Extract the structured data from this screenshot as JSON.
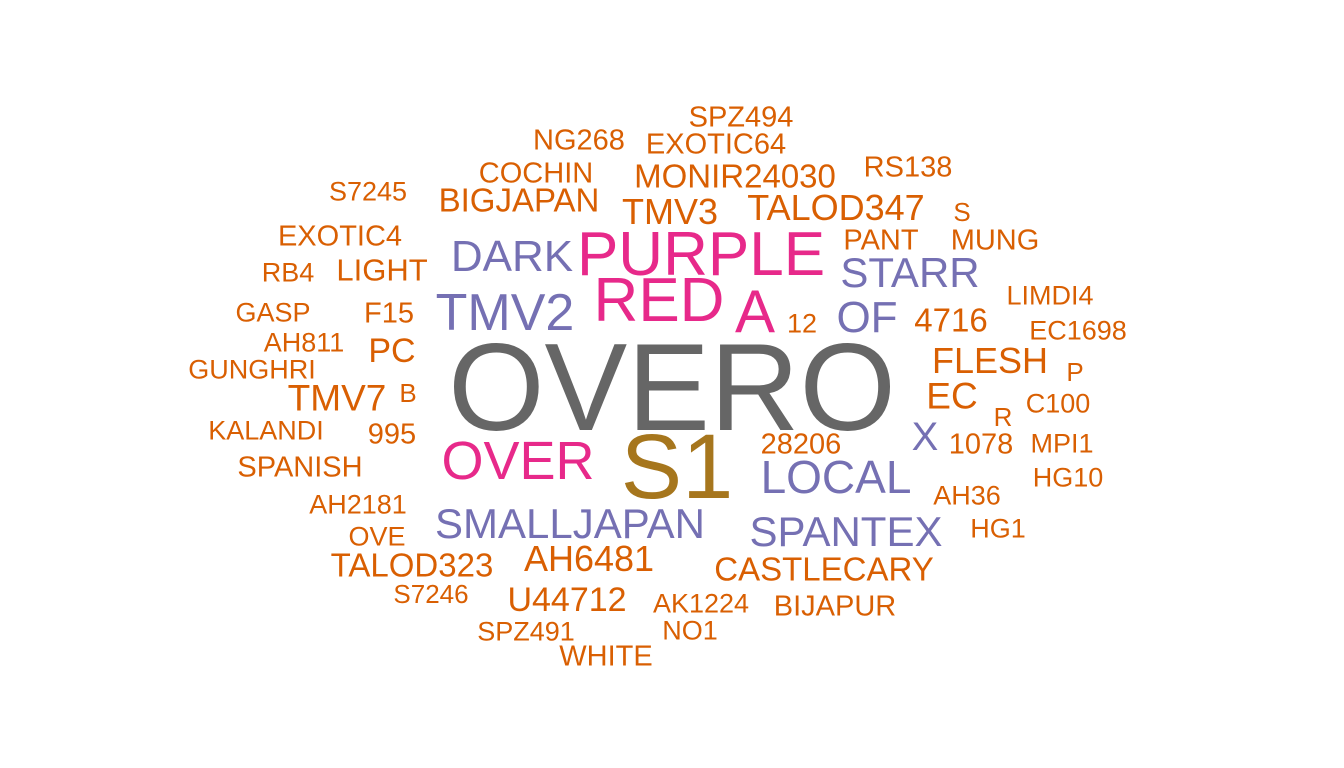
{
  "colors": {
    "gray": "#666666",
    "gold": "#A6761D",
    "magenta": "#E7298A",
    "purple": "#7570B3",
    "orange": "#D95F02"
  },
  "words": [
    {
      "text": "OVERO",
      "color": "gray"
    },
    {
      "text": "S1",
      "color": "gold"
    },
    {
      "text": "PURPLE",
      "color": "magenta"
    },
    {
      "text": "RED",
      "color": "magenta"
    },
    {
      "text": "A",
      "color": "magenta"
    },
    {
      "text": "OVER",
      "color": "magenta"
    },
    {
      "text": "TMV2",
      "color": "purple"
    },
    {
      "text": "DARK",
      "color": "purple"
    },
    {
      "text": "STARR",
      "color": "purple"
    },
    {
      "text": "OF",
      "color": "purple"
    },
    {
      "text": "LOCAL",
      "color": "purple"
    },
    {
      "text": "X",
      "color": "purple"
    },
    {
      "text": "SMALLJAPAN",
      "color": "purple"
    },
    {
      "text": "SPANTEX",
      "color": "purple"
    },
    {
      "text": "SPZ494",
      "color": "orange"
    },
    {
      "text": "NG268",
      "color": "orange"
    },
    {
      "text": "EXOTIC64",
      "color": "orange"
    },
    {
      "text": "COCHIN",
      "color": "orange"
    },
    {
      "text": "MONIR24030",
      "color": "orange"
    },
    {
      "text": "RS138",
      "color": "orange"
    },
    {
      "text": "S7245",
      "color": "orange"
    },
    {
      "text": "BIGJAPAN",
      "color": "orange"
    },
    {
      "text": "TMV3",
      "color": "orange"
    },
    {
      "text": "TALOD347",
      "color": "orange"
    },
    {
      "text": "S",
      "color": "orange"
    },
    {
      "text": "EXOTIC4",
      "color": "orange"
    },
    {
      "text": "PANT",
      "color": "orange"
    },
    {
      "text": "MUNG",
      "color": "orange"
    },
    {
      "text": "RB4",
      "color": "orange"
    },
    {
      "text": "LIGHT",
      "color": "orange"
    },
    {
      "text": "LIMDI4",
      "color": "orange"
    },
    {
      "text": "GASP",
      "color": "orange"
    },
    {
      "text": "F15",
      "color": "orange"
    },
    {
      "text": "12",
      "color": "orange"
    },
    {
      "text": "4716",
      "color": "orange"
    },
    {
      "text": "EC1698",
      "color": "orange"
    },
    {
      "text": "AH811",
      "color": "orange"
    },
    {
      "text": "PC",
      "color": "orange"
    },
    {
      "text": "FLESH",
      "color": "orange"
    },
    {
      "text": "GUNGHRI",
      "color": "orange"
    },
    {
      "text": "P",
      "color": "orange"
    },
    {
      "text": "TMV7",
      "color": "orange"
    },
    {
      "text": "B",
      "color": "orange"
    },
    {
      "text": "EC",
      "color": "orange"
    },
    {
      "text": "C100",
      "color": "orange"
    },
    {
      "text": "R",
      "color": "orange"
    },
    {
      "text": "KALANDI",
      "color": "orange"
    },
    {
      "text": "995",
      "color": "orange"
    },
    {
      "text": "28206",
      "color": "orange"
    },
    {
      "text": "1078",
      "color": "orange"
    },
    {
      "text": "MPI1",
      "color": "orange"
    },
    {
      "text": "SPANISH",
      "color": "orange"
    },
    {
      "text": "HG10",
      "color": "orange"
    },
    {
      "text": "AH2181",
      "color": "orange"
    },
    {
      "text": "AH36",
      "color": "orange"
    },
    {
      "text": "OVE",
      "color": "orange"
    },
    {
      "text": "HG1",
      "color": "orange"
    },
    {
      "text": "TALOD323",
      "color": "orange"
    },
    {
      "text": "AH6481",
      "color": "orange"
    },
    {
      "text": "CASTLECARY",
      "color": "orange"
    },
    {
      "text": "S7246",
      "color": "orange"
    },
    {
      "text": "U44712",
      "color": "orange"
    },
    {
      "text": "AK1224",
      "color": "orange"
    },
    {
      "text": "BIJAPUR",
      "color": "orange"
    },
    {
      "text": "SPZ491",
      "color": "orange"
    },
    {
      "text": "NO1",
      "color": "orange"
    },
    {
      "text": "WHITE",
      "color": "orange"
    }
  ]
}
